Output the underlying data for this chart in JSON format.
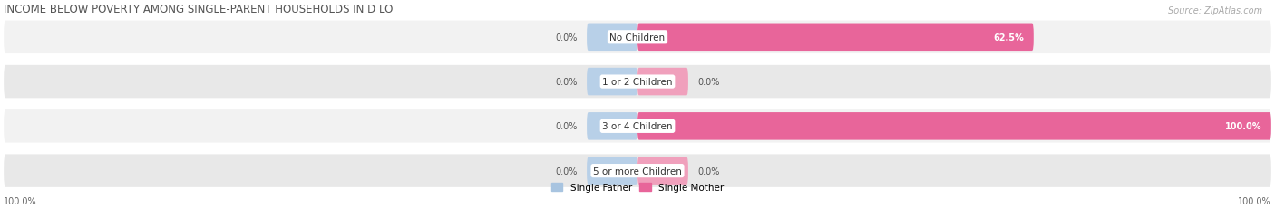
{
  "title": "INCOME BELOW POVERTY AMONG SINGLE-PARENT HOUSEHOLDS IN D LO",
  "source_text": "Source: ZipAtlas.com",
  "categories": [
    "No Children",
    "1 or 2 Children",
    "3 or 4 Children",
    "5 or more Children"
  ],
  "single_father_values": [
    0.0,
    0.0,
    0.0,
    0.0
  ],
  "single_mother_values": [
    62.5,
    0.0,
    100.0,
    0.0
  ],
  "father_color": "#a8c4e0",
  "mother_color_full": "#e8659a",
  "mother_color_small": "#f0a0bc",
  "father_color_small": "#b8d0e8",
  "bar_height": 0.62,
  "title_fontsize": 8.5,
  "label_fontsize": 7.5,
  "value_fontsize": 7.0,
  "legend_fontsize": 7.5,
  "source_fontsize": 7.0,
  "bottom_left_label": "100.0%",
  "bottom_right_label": "100.0%",
  "bg_color": "#ffffff",
  "row_bg_light": "#f2f2f2",
  "row_bg_dark": "#e8e8e8"
}
